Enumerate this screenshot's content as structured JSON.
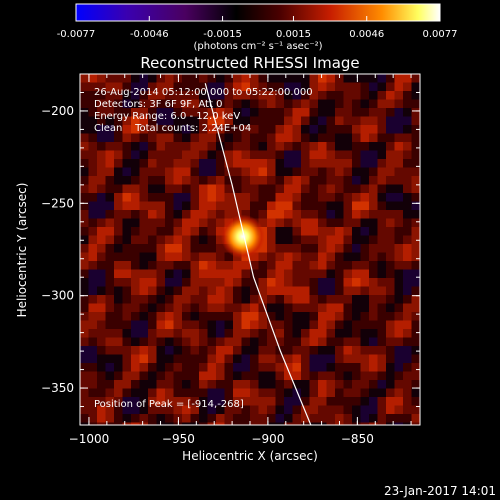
{
  "chart_data": {
    "type": "heatmap",
    "title": "Reconstructed RHESSI Image",
    "xlabel": "Heliocentric X (arcsec)",
    "ylabel": "Heliocentric Y (arcsec)",
    "xlim": [
      -1005,
      -815
    ],
    "ylim": [
      -370,
      -180
    ],
    "x_ticks": [
      {
        "value": -1000,
        "label": "−1000"
      },
      {
        "value": -950,
        "label": "−950"
      },
      {
        "value": -900,
        "label": "−900"
      },
      {
        "value": -850,
        "label": "−850"
      }
    ],
    "y_ticks": [
      {
        "value": -200,
        "label": "−200"
      },
      {
        "value": -250,
        "label": "−250"
      },
      {
        "value": -300,
        "label": "−300"
      },
      {
        "value": -350,
        "label": "−350"
      }
    ],
    "colorbar": {
      "range": [
        -0.0077,
        0.0077
      ],
      "ticks": [
        {
          "value": -0.0077,
          "label": "-0.0077"
        },
        {
          "value": -0.0046,
          "label": "-0.0046"
        },
        {
          "value": -0.0015,
          "label": "-0.0015"
        },
        {
          "value": 0.0015,
          "label": "0.0015"
        },
        {
          "value": 0.0046,
          "label": "0.0046"
        },
        {
          "value": 0.0077,
          "label": "0.0077"
        }
      ],
      "unit_label": "(photons cm⁻² s⁻¹ asec⁻²)"
    },
    "annotations": [
      "26-Aug-2014 05:12:00.000 to 05:22:00.000",
      "Detectors: 3F 6F 9F, Att 0",
      "Energy Range: 6.0 - 12.0 keV",
      "Clean    Total counts: 2.24E+04"
    ],
    "peak": {
      "x": -914,
      "y": -268,
      "label": "Position of Peak = [-914,-268]"
    },
    "limb_curve": [
      {
        "x": -935,
        "y": -185
      },
      {
        "x": -920,
        "y": -240
      },
      {
        "x": -908,
        "y": -290
      },
      {
        "x": -893,
        "y": -330
      },
      {
        "x": -876,
        "y": -370
      }
    ],
    "colors": {
      "limb": "#ffffff",
      "colormap": [
        "#0000ff",
        "#400070",
        "#000000",
        "#500000",
        "#c81e00",
        "#ff8c00",
        "#ffff80",
        "#ffffff"
      ]
    }
  },
  "footer": {
    "timestamp": "23-Jan-2017 14:01"
  }
}
